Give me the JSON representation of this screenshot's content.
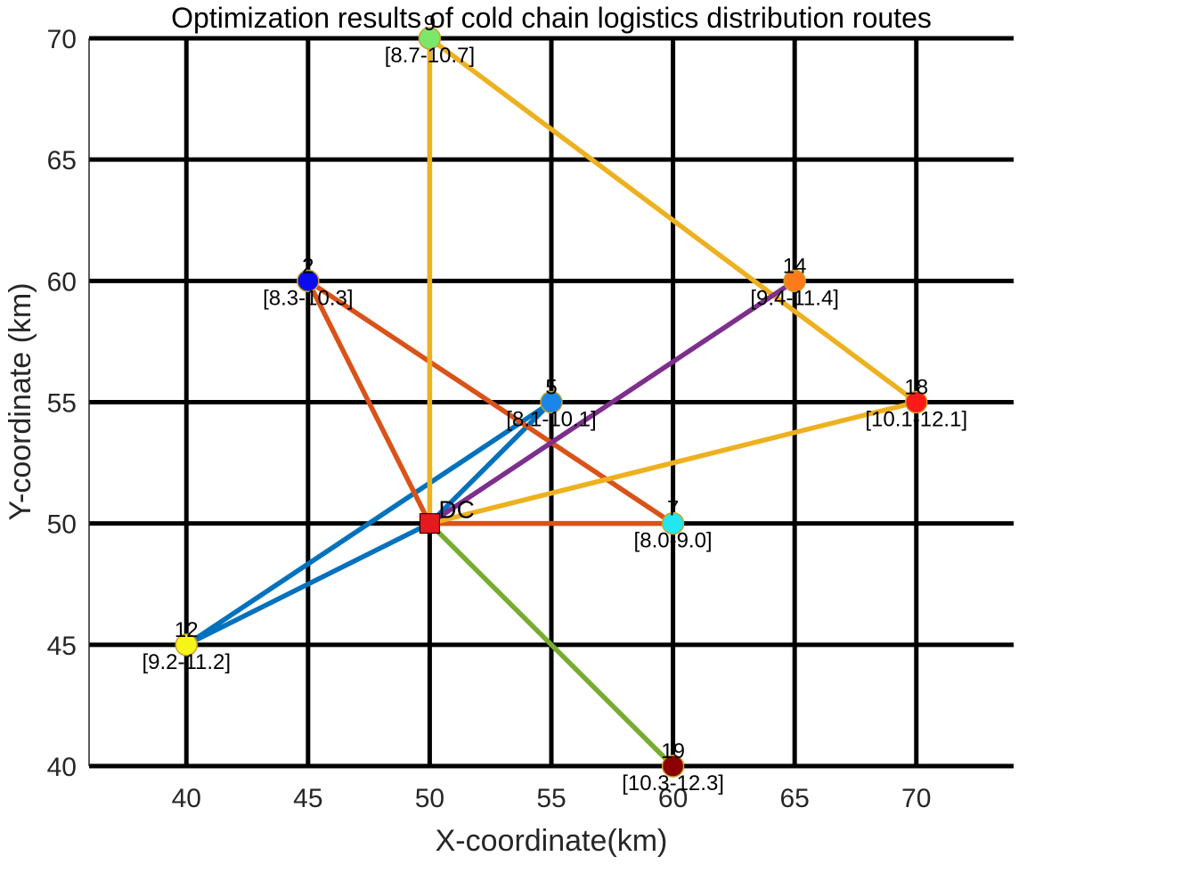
{
  "chart_data": {
    "type": "scatter",
    "title": "Optimization results of cold chain logistics distribution routes",
    "xlabel": "X-coordinate(km)",
    "ylabel": "Y-coordinate (km)",
    "xlim": [
      36,
      74
    ],
    "ylim": [
      40,
      70
    ],
    "xticks": [
      40,
      45,
      50,
      55,
      60,
      65,
      70
    ],
    "yticks": [
      40,
      45,
      50,
      55,
      60,
      65,
      70
    ],
    "grid": true,
    "depot": {
      "label": "DC",
      "x": 50,
      "y": 50,
      "color": "#e6191e"
    },
    "customers": [
      {
        "id": "9",
        "x": 50,
        "y": 70,
        "time_window": "[8.7-10.7]",
        "color": "#7ce86b"
      },
      {
        "id": "2",
        "x": 45,
        "y": 60,
        "time_window": "[8.3-10.3]",
        "color": "#0b0bf0"
      },
      {
        "id": "14",
        "x": 65,
        "y": 60,
        "time_window": "[9.4-11.4]",
        "color": "#ff7a1a"
      },
      {
        "id": "5",
        "x": 55,
        "y": 55,
        "time_window": "[8.1-10.1]",
        "color": "#1a86e8"
      },
      {
        "id": "18",
        "x": 70,
        "y": 55,
        "time_window": "[10.1-12.1]",
        "color": "#ff1a1a"
      },
      {
        "id": "7",
        "x": 60,
        "y": 50,
        "time_window": "[8.0-9.0]",
        "color": "#22e6f0"
      },
      {
        "id": "12",
        "x": 40,
        "y": 45,
        "time_window": "[9.2-11.2]",
        "color": "#f5f51a"
      },
      {
        "id": "19",
        "x": 60,
        "y": 40,
        "time_window": "[10.3-12.3]",
        "color": "#8b0000"
      }
    ],
    "routes": [
      {
        "color": "#0072bd",
        "path": [
          [
            50,
            50
          ],
          [
            55,
            55
          ],
          [
            40,
            45
          ],
          [
            50,
            50
          ]
        ]
      },
      {
        "color": "#d95319",
        "path": [
          [
            50,
            50
          ],
          [
            45,
            60
          ],
          [
            60,
            50
          ],
          [
            50,
            50
          ]
        ]
      },
      {
        "color": "#edb120",
        "path": [
          [
            50,
            50
          ],
          [
            50,
            70
          ],
          [
            70,
            55
          ],
          [
            50,
            50
          ]
        ]
      },
      {
        "color": "#7e2f8e",
        "path": [
          [
            50,
            50
          ],
          [
            65,
            60
          ]
        ]
      },
      {
        "color": "#77ac30",
        "path": [
          [
            50,
            50
          ],
          [
            60,
            40
          ]
        ]
      }
    ]
  }
}
